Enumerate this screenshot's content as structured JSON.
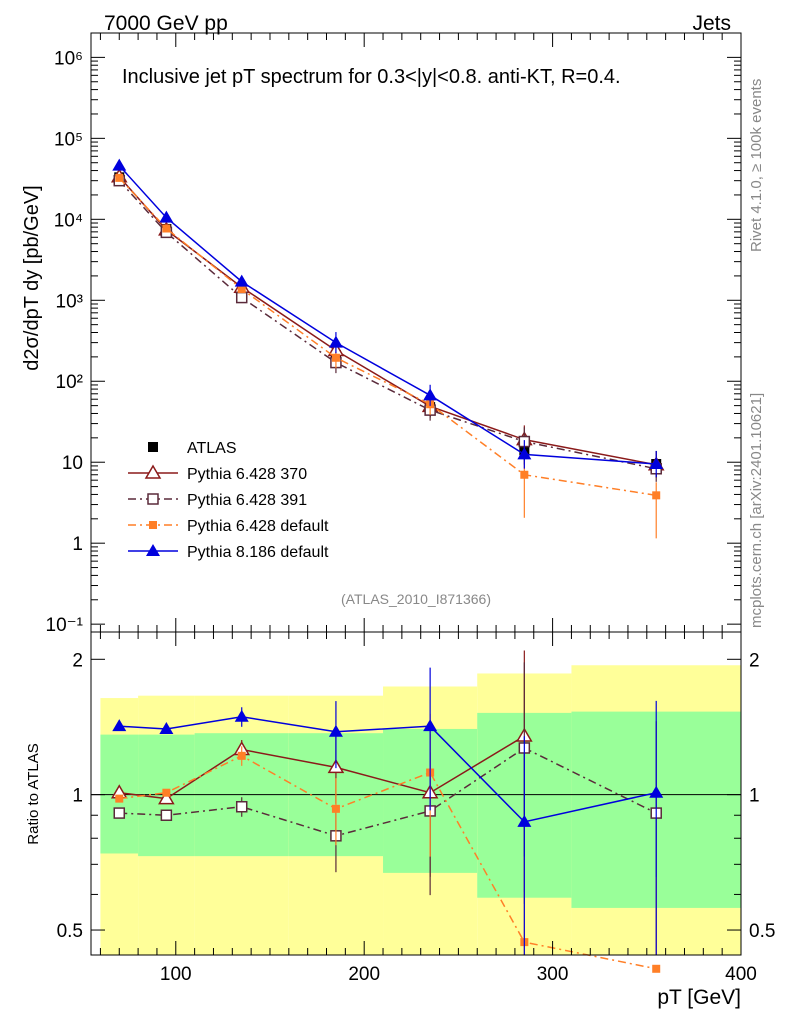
{
  "header": {
    "left": "7000 GeV pp",
    "right": "Jets"
  },
  "side_labels": {
    "rivet": "Rivet 4.1.0, ≥ 100k events",
    "mcplots": "mcplots.cern.ch [arXiv:2401.10621]"
  },
  "colors": {
    "atlas": "#000000",
    "p370": "#8b1a1a",
    "p391": "#5a2a3a",
    "p6def": "#ff7f27",
    "p8def": "#0000dd",
    "band_yellow": "#ffff99",
    "band_green": "#99ff99"
  },
  "chart_data": [
    {
      "type": "line",
      "title": "Inclusive jet pT spectrum for 0.3<|y|<0.8.  anti-KT, R=0.4.",
      "analysis_label": "(ATLAS_2010_I871366)",
      "xlabel": "pT [GeV]",
      "ylabel": "d2σ/dpT dy [pb/GeV]",
      "yscale": "log",
      "xlim": [
        55,
        400
      ],
      "ylim": [
        0.08,
        2000000
      ],
      "ytick_labels": [
        "10⁻¹",
        "1",
        "10",
        "10²",
        "10³",
        "10⁴",
        "10⁵",
        "10⁶"
      ],
      "ytick_values": [
        0.1,
        1,
        10,
        100,
        1000,
        10000,
        100000,
        1000000
      ],
      "x": [
        70,
        95,
        135,
        185,
        235,
        285,
        355
      ],
      "series": [
        {
          "key": "atlas",
          "name": "ATLAS",
          "marker": "square-filled",
          "values": [
            33000,
            7600,
            1150,
            210,
            48,
            14,
            9.5
          ]
        },
        {
          "key": "p370",
          "name": "Pythia 6.428 370",
          "marker": "triangle-open",
          "line": "solid",
          "values": [
            33500,
            7400,
            1450,
            240,
            49,
            19,
            9.3
          ]
        },
        {
          "key": "p391",
          "name": "Pythia 6.428 391",
          "marker": "square-open",
          "line": "dashdot",
          "values": [
            30000,
            6900,
            1080,
            170,
            44,
            18,
            8.3
          ]
        },
        {
          "key": "p6def",
          "name": "Pythia 6.428 default",
          "marker": "square-filled-small",
          "line": "dashdot",
          "values": [
            32500,
            7700,
            1380,
            195,
            52,
            7,
            3.9
          ]
        },
        {
          "key": "p8def",
          "name": "Pythia 8.186 default",
          "marker": "triangle-filled",
          "line": "solid",
          "values": [
            46000,
            10500,
            1700,
            300,
            67,
            12.5,
            9.5
          ]
        }
      ]
    },
    {
      "type": "line",
      "ylabel": "Ratio to ATLAS",
      "yscale": "log",
      "xlim": [
        55,
        400
      ],
      "ylim": [
        0.44,
        2.3
      ],
      "ytick_labels": [
        "0.5",
        "1",
        "2"
      ],
      "ytick_values": [
        0.5,
        1,
        2
      ],
      "xtick_labels": [
        "100",
        "200",
        "300",
        "400"
      ],
      "xtick_values": [
        100,
        200,
        300,
        400
      ],
      "bin_edges": [
        60,
        80,
        110,
        160,
        210,
        260,
        310,
        400
      ],
      "band_outer": [
        [
          0.44,
          1.64
        ],
        [
          0.44,
          1.66
        ],
        [
          0.44,
          1.66
        ],
        [
          0.44,
          1.66
        ],
        [
          0.44,
          1.74
        ],
        [
          0.44,
          1.86
        ],
        [
          0.44,
          1.94
        ]
      ],
      "band_inner": [
        [
          0.74,
          1.36
        ],
        [
          0.73,
          1.36
        ],
        [
          0.73,
          1.37
        ],
        [
          0.73,
          1.37
        ],
        [
          0.67,
          1.4
        ],
        [
          0.59,
          1.52
        ],
        [
          0.56,
          1.53
        ]
      ],
      "x": [
        70,
        95,
        135,
        185,
        235,
        285,
        355
      ],
      "series": [
        {
          "key": "p370",
          "name": "Pythia 6.428 370",
          "values": [
            1.01,
            0.98,
            1.26,
            1.15,
            1.01,
            1.35,
            null
          ]
        },
        {
          "key": "p391",
          "name": "Pythia 6.428 391",
          "values": [
            0.91,
            0.9,
            0.94,
            0.81,
            0.92,
            1.27,
            0.91
          ]
        },
        {
          "key": "p6def",
          "name": "Pythia 6.428 default",
          "values": [
            0.98,
            1.01,
            1.22,
            0.93,
            1.12,
            0.47,
            0.41
          ]
        },
        {
          "key": "p8def",
          "name": "Pythia 8.186 default",
          "values": [
            1.42,
            1.4,
            1.49,
            1.38,
            1.42,
            0.87,
            1.01
          ]
        }
      ]
    }
  ]
}
